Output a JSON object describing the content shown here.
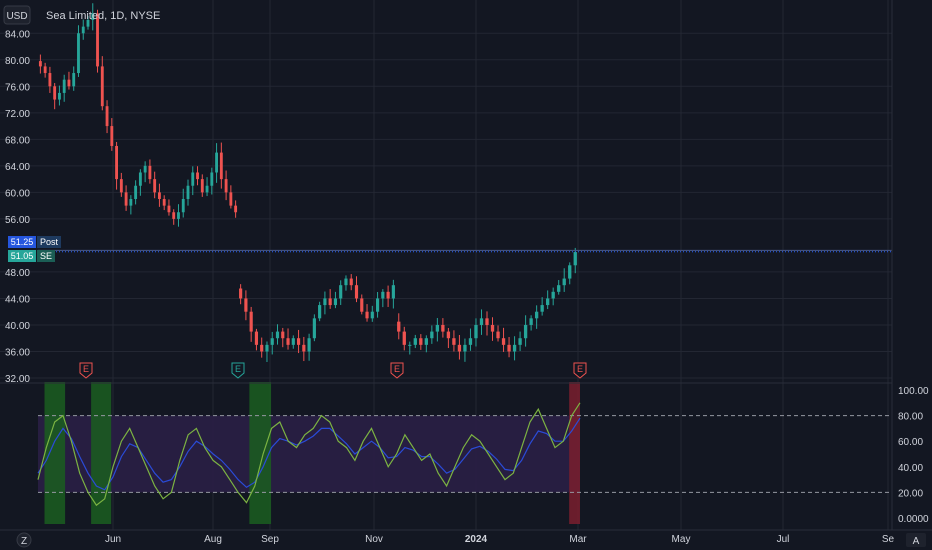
{
  "header": {
    "currency": "USD",
    "title": "Sea Limited, 1D, NYSE"
  },
  "colors": {
    "bg": "#131722",
    "grid": "#232733",
    "up": "#26a69a",
    "down": "#ef5350",
    "price_line": "#2962ff",
    "rsi_a": "#7cb342",
    "rsi_b": "#2a4bd7",
    "band_fill": "#2a1f45",
    "green_zone": "#1b5e20",
    "red_zone": "#7a1f2e"
  },
  "price_axis": {
    "ticks": [
      "84.00",
      "80.00",
      "76.00",
      "72.00",
      "68.00",
      "64.00",
      "60.00",
      "56.00",
      "48.00",
      "44.00",
      "40.00",
      "36.00",
      "32.00"
    ]
  },
  "price_tags": {
    "last": "51.25",
    "last_label": "Post",
    "close": "51.05",
    "close_label": "SE"
  },
  "indicator_axis": {
    "ticks": [
      "100.00",
      "80.00",
      "60.00",
      "40.00",
      "20.00",
      "0.0000"
    ]
  },
  "time_axis": {
    "ticks": [
      "Jun",
      "Aug",
      "Sep",
      "Nov",
      "2024",
      "Mar",
      "May",
      "Jul",
      "Se"
    ]
  },
  "earnings_markers": [
    "E",
    "E",
    "E",
    "E"
  ],
  "corner": {
    "left_icon": "Z",
    "right_icon": "A"
  },
  "chart_data": {
    "type": "candlestick",
    "title": "Sea Limited, 1D, NYSE",
    "ylim": [
      32,
      86
    ],
    "indicator_ylim": [
      0,
      100
    ],
    "indicator_band": [
      20,
      80
    ],
    "segments": [
      {
        "name": "pre-gap",
        "points": [
          79,
          78,
          76,
          74,
          75,
          77,
          76,
          78,
          84,
          85,
          86,
          87,
          79,
          73,
          70,
          67,
          62,
          60,
          58,
          59,
          61,
          63,
          64,
          62,
          60,
          59,
          58,
          57,
          56,
          57,
          59,
          61,
          63,
          62,
          60,
          61,
          63,
          66,
          62,
          60,
          58,
          57
        ]
      },
      {
        "name": "post-gap-1",
        "points": [
          44,
          42,
          39,
          37,
          36,
          37,
          38,
          39,
          38,
          37,
          38,
          37,
          36,
          38,
          41,
          43,
          44,
          43,
          44,
          46,
          47,
          46,
          44,
          42,
          41,
          42,
          44,
          45,
          44,
          46
        ]
      },
      {
        "name": "post-gap-2",
        "points": [
          39,
          37,
          37,
          38,
          37,
          38,
          39,
          40,
          39,
          38,
          37,
          36,
          37,
          38,
          40,
          41,
          40,
          39,
          38,
          37,
          36,
          37,
          38,
          40,
          41,
          42,
          43,
          44,
          45,
          46,
          47,
          49,
          51
        ]
      }
    ],
    "price_line": 51.05,
    "rsi_fast": [
      30,
      55,
      75,
      80,
      60,
      35,
      20,
      10,
      15,
      40,
      60,
      70,
      55,
      40,
      25,
      15,
      20,
      45,
      65,
      70,
      55,
      45,
      40,
      30,
      20,
      12,
      25,
      50,
      70,
      75,
      60,
      55,
      65,
      70,
      80,
      75,
      60,
      55,
      45,
      60,
      70,
      55,
      40,
      50,
      65,
      55,
      45,
      50,
      35,
      25,
      40,
      55,
      65,
      60,
      50,
      40,
      30,
      35,
      55,
      75,
      85,
      70,
      55,
      60,
      80,
      90
    ],
    "rsi_slow": [
      35,
      45,
      60,
      70,
      62,
      48,
      35,
      25,
      22,
      32,
      48,
      58,
      55,
      45,
      35,
      28,
      30,
      40,
      52,
      60,
      56,
      50,
      45,
      38,
      30,
      24,
      28,
      40,
      55,
      62,
      60,
      57,
      60,
      64,
      70,
      70,
      64,
      58,
      50,
      55,
      60,
      55,
      47,
      48,
      55,
      53,
      48,
      48,
      42,
      35,
      38,
      46,
      54,
      56,
      52,
      46,
      38,
      37,
      45,
      58,
      68,
      66,
      60,
      60,
      68,
      78
    ],
    "highlight_zones": [
      {
        "type": "oversold",
        "start": 0.012,
        "end": 0.05
      },
      {
        "type": "oversold",
        "start": 0.098,
        "end": 0.135
      },
      {
        "type": "oversold",
        "start": 0.39,
        "end": 0.43
      },
      {
        "type": "overbought",
        "start": 0.98,
        "end": 1.0
      }
    ]
  }
}
